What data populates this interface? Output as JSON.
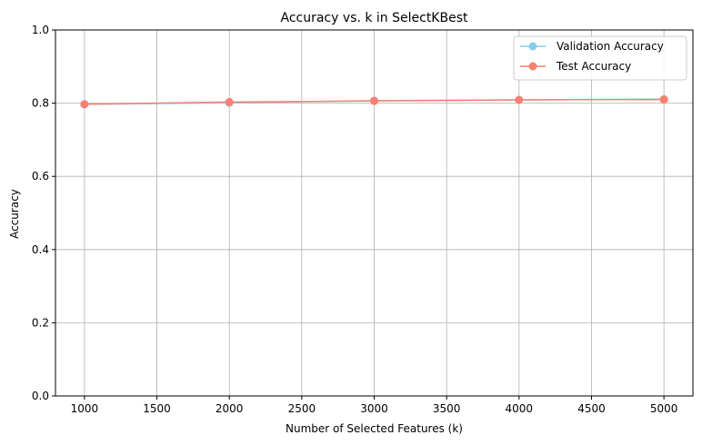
{
  "chart_data": {
    "type": "line",
    "title": "Accuracy vs. k in SelectKBest",
    "xlabel": "Number of Selected Features (k)",
    "ylabel": "Accuracy",
    "x": [
      1000,
      2000,
      3000,
      4000,
      5000
    ],
    "xlim": [
      800,
      5200
    ],
    "ylim": [
      0.0,
      1.0
    ],
    "xticks": [
      1000,
      1500,
      2000,
      2500,
      3000,
      3500,
      4000,
      4500,
      5000
    ],
    "yticks": [
      0.0,
      0.2,
      0.4,
      0.6,
      0.8,
      1.0
    ],
    "xtick_labels": [
      "1000",
      "1500",
      "2000",
      "2500",
      "3000",
      "3500",
      "4000",
      "4500",
      "5000"
    ],
    "ytick_labels": [
      "0.0",
      "0.2",
      "0.4",
      "0.6",
      "0.8",
      "1.0"
    ],
    "grid": true,
    "legend_position": "top-right",
    "series": [
      {
        "name": "Validation Accuracy",
        "color": "#87ceeb",
        "marker": "circle",
        "values": [
          0.797,
          0.801,
          0.807,
          0.809,
          0.811
        ]
      },
      {
        "name": "Test Accuracy",
        "color": "#fa8072",
        "marker": "circle",
        "values": [
          0.797,
          0.803,
          0.806,
          0.809,
          0.81
        ]
      }
    ]
  }
}
